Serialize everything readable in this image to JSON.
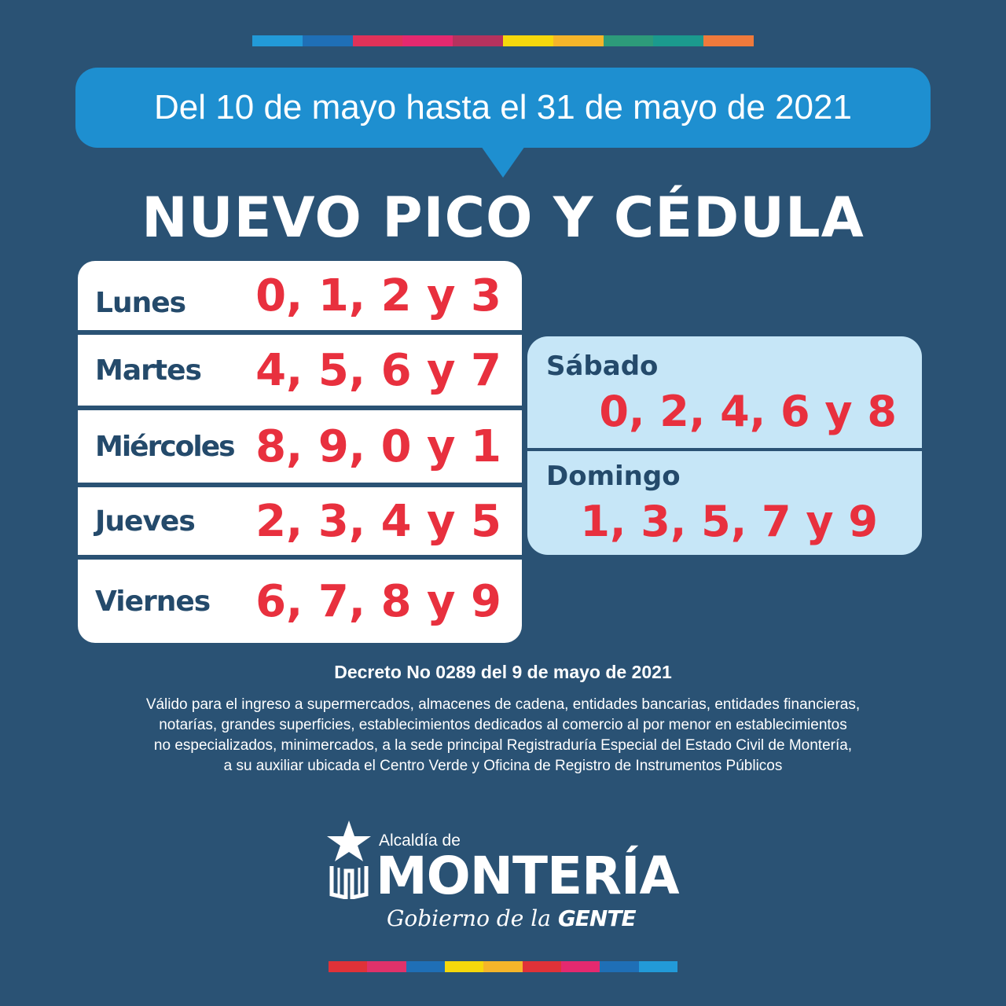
{
  "colors": {
    "background": "#2a5274",
    "bubble": "#1e8fd0",
    "digits": "#e8303e",
    "day_label": "#244a6b",
    "weekend_card": "#c6e6f7"
  },
  "top_stripe": [
    "#229ad8",
    "#1f6fb6",
    "#e03259",
    "#e4296f",
    "#b5325e",
    "#f5d80c",
    "#f5b52a",
    "#2d9b7a",
    "#1b9a8e",
    "#ef7a3c"
  ],
  "bottom_stripe": [
    "#e03238",
    "#e0326a",
    "#1f6fb6",
    "#f5d80c",
    "#f5b52a",
    "#e03238",
    "#e4296f",
    "#1f6fb6",
    "#229ad8"
  ],
  "date_range": "Del 10 de mayo hasta el 31 de mayo de 2021",
  "title": "NUEVO PICO Y CÉDULA",
  "weekdays": [
    {
      "day": "Lunes",
      "digits": "0, 1, 2 y 3"
    },
    {
      "day": "Martes",
      "digits": "4, 5, 6 y 7"
    },
    {
      "day": "Miércoles",
      "digits": "8, 9, 0 y 1"
    },
    {
      "day": "Jueves",
      "digits": "2, 3, 4 y 5"
    },
    {
      "day": "Viernes",
      "digits": "6, 7, 8 y 9"
    }
  ],
  "weekend": [
    {
      "day": "Sábado",
      "digits": "0, 2, 4, 6 y 8"
    },
    {
      "day": "Domingo",
      "digits": "1, 3, 5, 7 y 9"
    }
  ],
  "decree": "Decreto No 0289 del 9 de mayo de 2021",
  "validity_lines": [
    "Válido para el ingreso a supermercados, almacenes de cadena, entidades bancarias, entidades financieras,",
    "notarías, grandes superficies, establecimientos dedicados al comercio al por menor en establecimientos",
    "no especializados, minimercados, a la sede principal Registraduría Especial del Estado Civil de Montería,",
    "a su auxiliar ubicada el Centro Verde y Oficina de Registro de Instrumentos Públicos"
  ],
  "logo": {
    "small": "Alcaldía de",
    "name": "MONTERÍA",
    "slogan_script": "Gobierno de la",
    "slogan_bold": "GENTE",
    "emblem": "star-emblem-icon"
  }
}
